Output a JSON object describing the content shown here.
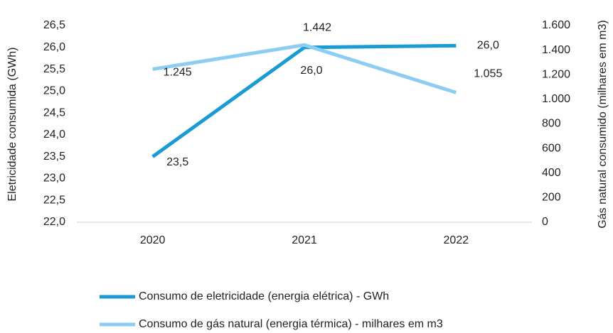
{
  "chart_data": {
    "type": "line",
    "categories": [
      "2020",
      "2021",
      "2022"
    ],
    "ylabel": "Eletricidade consumida (GWh)",
    "y2label": "Gás natural consumido (milhares em m3)",
    "ylim": [
      22.0,
      26.5
    ],
    "yticks": [
      {
        "value": 22.0,
        "label": "22,0"
      },
      {
        "value": 22.5,
        "label": "22,5"
      },
      {
        "value": 23.0,
        "label": "23,0"
      },
      {
        "value": 23.5,
        "label": "23,5"
      },
      {
        "value": 24.0,
        "label": "24,0"
      },
      {
        "value": 24.5,
        "label": "24,5"
      },
      {
        "value": 25.0,
        "label": "25,0"
      },
      {
        "value": 25.5,
        "label": "25,5"
      },
      {
        "value": 26.0,
        "label": "26,0"
      },
      {
        "value": 26.5,
        "label": "26,5"
      }
    ],
    "y2lim": [
      0,
      1600
    ],
    "y2ticks": [
      0,
      200,
      400,
      600,
      800,
      {
        "value": 1000,
        "label": "1.000"
      },
      {
        "value": 1200,
        "label": "1.200"
      },
      {
        "value": 1400,
        "label": "1.400"
      },
      {
        "value": 1600,
        "label": "1.600"
      }
    ],
    "legend": "bottom",
    "series": [
      {
        "name": "Consumo de eletricidade (energia elétrica) - GWh",
        "color": "#1a9bd4",
        "values": [
          23.5,
          26.0,
          26.04
        ],
        "value_labels": [
          "23,5",
          "26,0",
          "26,0"
        ]
      },
      {
        "name": "Consumo de gás natural (energia térmica) - milhares em m3",
        "color": "#8ecdf2",
        "axis": "y2",
        "values": [
          1245,
          1442,
          1055
        ],
        "value_labels": [
          "1.245",
          "1.442",
          "1.055"
        ]
      }
    ]
  }
}
